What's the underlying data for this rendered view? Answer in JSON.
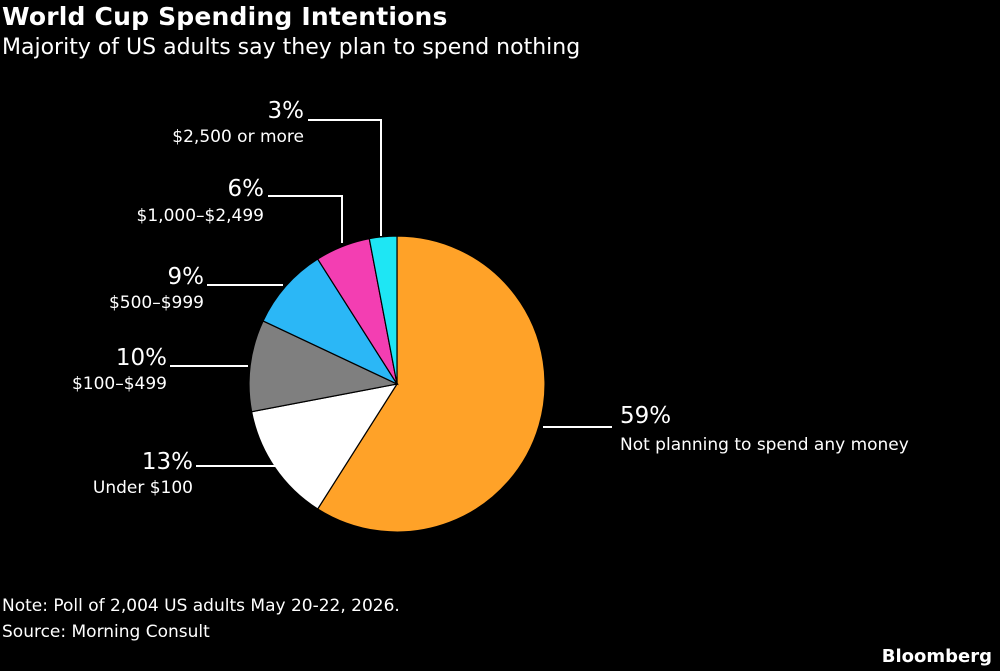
{
  "header": {
    "title": "World Cup Spending Intentions",
    "subtitle": "Majority of US adults say they plan to spend nothing"
  },
  "footer": {
    "note": "Note: Poll of 2,004 US adults May 20-22, 2026.",
    "source": "Source: Morning Consult",
    "brand": "Bloomberg"
  },
  "chart_data": {
    "type": "pie",
    "start": "12 o'clock",
    "direction": "clockwise",
    "legend": "none",
    "slices": [
      {
        "label": "Not planning to spend any money",
        "value": 59,
        "display": "59%",
        "color": "#ffa228"
      },
      {
        "label": "Under $100",
        "value": 13,
        "display": "13%",
        "color": "#ffffff"
      },
      {
        "label": "$100–$499",
        "value": 10,
        "display": "10%",
        "color": "#7f7f7f"
      },
      {
        "label": "$500–$999",
        "value": 9,
        "display": "9%",
        "color": "#2bb7f6"
      },
      {
        "label": "$1,000–$2,499",
        "value": 6,
        "display": "6%",
        "color": "#f33eb2"
      },
      {
        "label": "$2,500 or more",
        "value": 3,
        "display": "3%",
        "color": "#1ee6f4"
      }
    ]
  }
}
